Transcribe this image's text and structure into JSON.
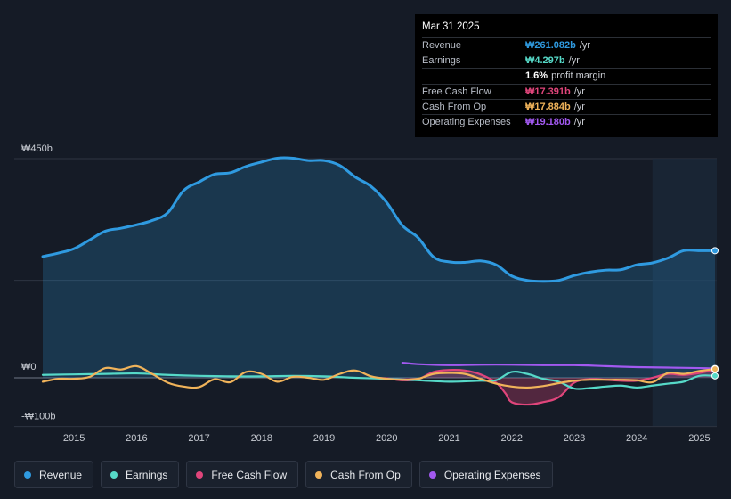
{
  "tooltip": {
    "date": "Mar 31 2025",
    "rows": [
      {
        "label": "Revenue",
        "value": "₩261.082b",
        "unit": "/yr",
        "color": "#2f9ae0"
      },
      {
        "label": "Earnings",
        "value": "₩4.297b",
        "unit": "/yr",
        "color": "#56d9c8"
      },
      {
        "label": "",
        "value": "1.6%",
        "unit": "profit margin",
        "color": "#ffffff"
      },
      {
        "label": "Free Cash Flow",
        "value": "₩17.391b",
        "unit": "/yr",
        "color": "#e0457b"
      },
      {
        "label": "Cash From Op",
        "value": "₩17.884b",
        "unit": "/yr",
        "color": "#f0b35a"
      },
      {
        "label": "Operating Expenses",
        "value": "₩19.180b",
        "unit": "/yr",
        "color": "#a259f0"
      }
    ]
  },
  "legend": [
    {
      "label": "Revenue",
      "color": "#2f9ae0"
    },
    {
      "label": "Earnings",
      "color": "#56d9c8"
    },
    {
      "label": "Free Cash Flow",
      "color": "#e0457b"
    },
    {
      "label": "Cash From Op",
      "color": "#f0b35a"
    },
    {
      "label": "Operating Expenses",
      "color": "#a259f0"
    }
  ],
  "chart_data": {
    "type": "line",
    "title": "",
    "xlabel": "",
    "ylabel": "",
    "y_tick_labels": [
      "₩450b",
      "₩0",
      "-₩100b"
    ],
    "y_ticks": [
      450,
      0,
      -100
    ],
    "ylim": [
      -100,
      450
    ],
    "xlim": [
      2014.45,
      2025.25
    ],
    "x_tick_labels": [
      "2015",
      "2016",
      "2017",
      "2018",
      "2019",
      "2020",
      "2021",
      "2022",
      "2023",
      "2024",
      "2025"
    ],
    "x_ticks": [
      2015,
      2016,
      2017,
      2018,
      2019,
      2020,
      2021,
      2022,
      2023,
      2024,
      2025
    ],
    "forecast_start": 2024.25,
    "series": [
      {
        "name": "Revenue",
        "color": "#2f9ae0",
        "filled": true,
        "x": [
          2014.5,
          2014.75,
          2015.0,
          2015.25,
          2015.5,
          2015.75,
          2016.0,
          2016.25,
          2016.5,
          2016.75,
          2017.0,
          2017.25,
          2017.5,
          2017.75,
          2018.0,
          2018.25,
          2018.5,
          2018.75,
          2019.0,
          2019.25,
          2019.5,
          2019.75,
          2020.0,
          2020.25,
          2020.5,
          2020.75,
          2021.0,
          2021.25,
          2021.5,
          2021.75,
          2022.0,
          2022.25,
          2022.5,
          2022.75,
          2023.0,
          2023.25,
          2023.5,
          2023.75,
          2024.0,
          2024.25,
          2024.5,
          2024.75,
          2025.0,
          2025.25
        ],
        "values": [
          249,
          256,
          265,
          283,
          301,
          307,
          314,
          323,
          339,
          384,
          402,
          418,
          421,
          434,
          443,
          451,
          451,
          446,
          446,
          436,
          412,
          393,
          360,
          313,
          288,
          248,
          238,
          237,
          240,
          232,
          209,
          200,
          198,
          200,
          210,
          217,
          221,
          222,
          232,
          236,
          246,
          261,
          261,
          261
        ]
      },
      {
        "name": "Earnings",
        "color": "#56d9c8",
        "filled": false,
        "x": [
          2014.5,
          2015.0,
          2015.5,
          2016.0,
          2016.5,
          2017.0,
          2017.5,
          2018.0,
          2018.5,
          2019.0,
          2019.5,
          2020.0,
          2020.5,
          2021.0,
          2021.5,
          2021.75,
          2022.0,
          2022.25,
          2022.5,
          2022.75,
          2023.0,
          2023.25,
          2023.5,
          2023.75,
          2024.0,
          2024.25,
          2024.5,
          2024.75,
          2025.0,
          2025.25
        ],
        "values": [
          6,
          7,
          8,
          9,
          6,
          4,
          3,
          3,
          4,
          3,
          0,
          -2,
          -5,
          -8,
          -6,
          -5,
          12,
          8,
          -2,
          -8,
          -22,
          -21,
          -18,
          -16,
          -20,
          -16,
          -12,
          -8,
          4,
          4
        ]
      },
      {
        "name": "Free Cash Flow",
        "color": "#e0457b",
        "filled": true,
        "x": [
          2019.75,
          2020.0,
          2020.25,
          2020.5,
          2020.75,
          2021.0,
          2021.25,
          2021.5,
          2021.75,
          2021.9,
          2022.0,
          2022.25,
          2022.5,
          2022.75,
          2023.0,
          2023.25,
          2023.5,
          2023.75,
          2024.0,
          2024.25,
          2024.5,
          2024.75,
          2025.0,
          2025.25
        ],
        "values": [
          0,
          -1,
          -5,
          -3,
          12,
          16,
          15,
          7,
          -10,
          -32,
          -50,
          -55,
          -50,
          -40,
          -10,
          -3,
          -4,
          -6,
          -6,
          0,
          8,
          6,
          10,
          17
        ]
      },
      {
        "name": "Cash From Op",
        "color": "#f0b35a",
        "filled": false,
        "x": [
          2014.5,
          2014.75,
          2015.0,
          2015.25,
          2015.5,
          2015.75,
          2016.0,
          2016.25,
          2016.5,
          2016.75,
          2017.0,
          2017.25,
          2017.5,
          2017.75,
          2018.0,
          2018.25,
          2018.5,
          2018.75,
          2019.0,
          2019.25,
          2019.5,
          2019.75,
          2020.0,
          2020.25,
          2020.5,
          2020.75,
          2021.0,
          2021.25,
          2021.5,
          2021.75,
          2022.0,
          2022.25,
          2022.5,
          2022.75,
          2023.0,
          2023.25,
          2023.5,
          2023.75,
          2024.0,
          2024.25,
          2024.5,
          2024.75,
          2025.0,
          2025.25
        ],
        "values": [
          -8,
          -2,
          -2,
          2,
          20,
          17,
          24,
          8,
          -10,
          -18,
          -19,
          -3,
          -9,
          12,
          8,
          -8,
          2,
          0,
          -4,
          8,
          15,
          3,
          -2,
          -4,
          -2,
          8,
          10,
          8,
          -2,
          -12,
          -18,
          -20,
          -17,
          -11,
          -6,
          -4,
          -4,
          -4,
          -5,
          -9,
          10,
          8,
          14,
          18
        ]
      },
      {
        "name": "Operating Expenses",
        "color": "#a259f0",
        "filled": false,
        "x": [
          2020.25,
          2020.5,
          2021.0,
          2021.5,
          2022.0,
          2022.5,
          2023.0,
          2023.5,
          2024.0,
          2024.5,
          2025.0,
          2025.25
        ],
        "values": [
          31,
          28,
          26,
          27,
          27,
          26,
          26,
          24,
          22,
          21,
          20,
          19
        ]
      }
    ]
  }
}
